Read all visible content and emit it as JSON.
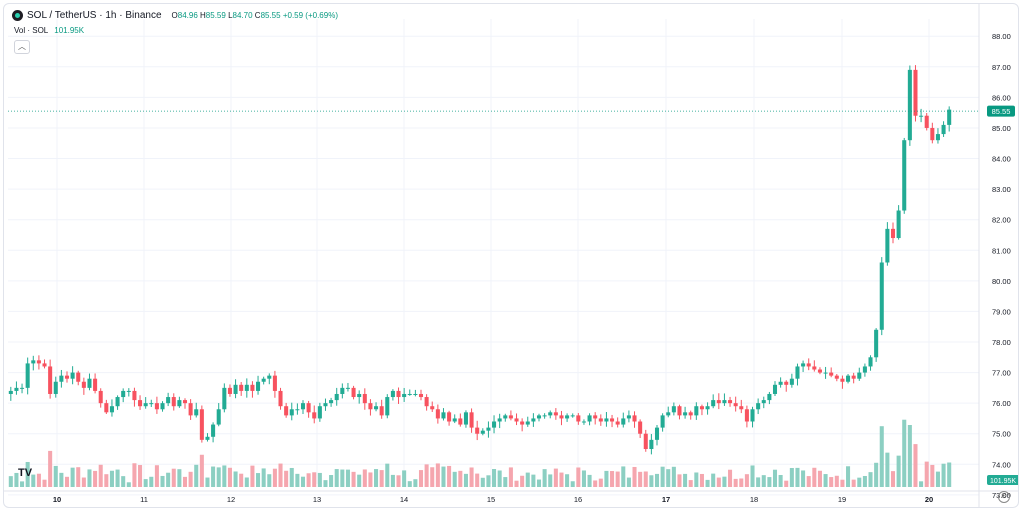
{
  "header": {
    "symbol": "SOL / TetherUS · 1h · Binance",
    "o_key": "O",
    "o_val": "84.96",
    "h_key": "H",
    "h_val": "85.59",
    "l_key": "L",
    "l_val": "84.70",
    "c_key": "C",
    "c_val": "85.55",
    "change": "+0.59 (+0.69%)"
  },
  "volume_legend": {
    "label": "Vol · SOL",
    "value": "101.95K"
  },
  "icons": {
    "collapse": "chevron-up-icon",
    "logo": "tradingview-logo",
    "settings": "gear-icon"
  },
  "colors": {
    "up": "#22ab94",
    "down": "#f7525f",
    "up_vol": "#8ccfc2",
    "down_vol": "#f5a6ae",
    "line": "#089981"
  },
  "chart_data": {
    "type": "candlestick",
    "ylim": [
      72.8,
      88.4
    ],
    "yticks": [
      "73.00",
      "74.00",
      "75.00",
      "76.00",
      "77.00",
      "78.00",
      "79.00",
      "80.00",
      "81.00",
      "82.00",
      "83.00",
      "84.00",
      "85.00",
      "86.00",
      "87.00",
      "88.00"
    ],
    "xticks": [
      "10",
      "11",
      "12",
      "13",
      "14",
      "15",
      "16",
      "17",
      "18",
      "19",
      "20"
    ],
    "last_price": "85.55",
    "last_volume": "101.95K",
    "x_axis_note": "hourly candles, day labels",
    "series": [
      {
        "name": "SOL / TetherUS",
        "values": [
          76.4,
          76.5,
          76.5,
          77.3,
          77.4,
          77.3,
          77.2,
          76.3,
          76.7,
          76.9,
          76.8,
          77.0,
          76.7,
          76.5,
          76.8,
          76.4,
          76.0,
          75.7,
          75.9,
          76.2,
          76.4,
          76.4,
          76.1,
          75.9,
          76.0,
          76.0,
          75.8,
          76.0,
          76.2,
          75.9,
          76.1,
          76.0,
          75.6,
          75.8,
          74.8,
          74.9,
          75.3,
          75.8,
          76.5,
          76.3,
          76.6,
          76.4,
          76.6,
          76.4,
          76.7,
          76.8,
          76.9,
          76.4,
          75.9,
          75.6,
          75.8,
          75.8,
          76.0,
          75.7,
          75.5,
          75.9,
          76.0,
          76.1,
          76.3,
          76.5,
          76.5,
          76.2,
          76.3,
          76.0,
          75.8,
          75.9,
          75.6,
          76.2,
          76.4,
          76.2,
          76.3,
          76.3,
          76.3,
          76.2,
          75.9,
          75.8,
          75.5,
          75.7,
          75.4,
          75.5,
          75.3,
          75.7,
          75.2,
          75.0,
          75.1,
          75.2,
          75.4,
          75.5,
          75.6,
          75.5,
          75.4,
          75.3,
          75.4,
          75.5,
          75.6,
          75.6,
          75.7,
          75.6,
          75.5,
          75.6,
          75.6,
          75.4,
          75.4,
          75.6,
          75.5,
          75.4,
          75.5,
          75.4,
          75.3,
          75.5,
          75.6,
          75.4,
          75.0,
          74.5,
          74.8,
          75.2,
          75.6,
          75.7,
          75.9,
          75.6,
          75.7,
          75.6,
          75.9,
          75.8,
          75.9,
          76.1,
          76.0,
          76.1,
          76.0,
          75.9,
          75.8,
          75.4,
          75.8,
          76.0,
          76.1,
          76.3,
          76.6,
          76.7,
          76.6,
          76.8,
          77.2,
          77.3,
          77.2,
          77.1,
          77.0,
          77.0,
          76.9,
          76.8,
          76.7,
          76.9,
          76.8,
          77.0,
          77.2,
          77.5,
          78.4,
          80.6,
          81.7,
          81.4,
          82.3,
          84.6,
          86.9,
          85.4,
          85.4,
          85.0,
          84.6,
          84.8,
          85.1,
          85.6
        ]
      }
    ],
    "volumes_note": "volume histogram bars at bottom, spikes near end"
  }
}
